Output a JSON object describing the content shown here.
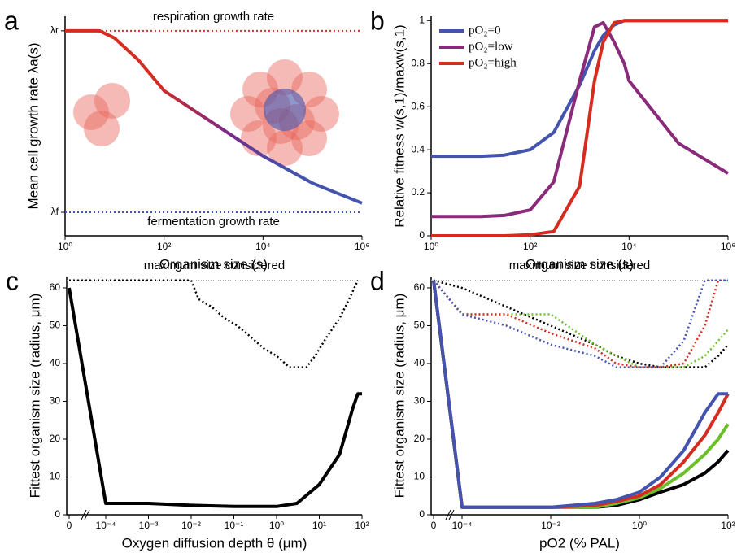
{
  "chart_data": [
    {
      "type": "line",
      "panel_label": "a",
      "xlabel": "Organism size (s)",
      "ylabel": "Mean cell growth rate λa(s)",
      "annotations": [
        "respiration growth rate",
        "fermentation growth rate"
      ],
      "xscale": "log",
      "xlim": [
        1,
        1000000
      ],
      "xticks": [
        {
          "value": 1,
          "label": "10⁰"
        },
        {
          "value": 100,
          "label": "10²"
        },
        {
          "value": 10000,
          "label": "10⁴"
        },
        {
          "value": 1000000,
          "label": "10⁶"
        }
      ],
      "ylim": [
        -0.13,
        1.08
      ],
      "yticks": [
        {
          "value": 0,
          "label": "λf"
        },
        {
          "value": 1,
          "label": "λr"
        }
      ],
      "reference_colors": [
        "#4353ae",
        "#d62b1f"
      ],
      "x": [
        1,
        3,
        5,
        10,
        30,
        100,
        1000,
        10000,
        100000,
        1000000
      ],
      "series": [
        {
          "colors": [
            "#d62b1f",
            "#7a2a8a",
            "#4353ae"
          ],
          "values": [
            1,
            1,
            1,
            0.96,
            0.84,
            0.67,
            0.49,
            0.31,
            0.16,
            0.05
          ]
        }
      ]
    },
    {
      "type": "line",
      "panel_label": "b",
      "xlabel": "Organism size (s)",
      "ylabel": "Relative fitness w(s,1)/maxw(s,1)",
      "xscale": "log",
      "xlim": [
        1,
        1000000
      ],
      "xticks": [
        {
          "value": 1,
          "label": "10⁰"
        },
        {
          "value": 100,
          "label": "10²"
        },
        {
          "value": 10000,
          "label": "10⁴"
        },
        {
          "value": 1000000,
          "label": "10⁶"
        }
      ],
      "ylim": [
        0,
        1.02
      ],
      "yticks": [
        0,
        0.2,
        0.4,
        0.6,
        0.8,
        1
      ],
      "legend": "upper-left",
      "x": [
        1,
        10,
        30,
        100,
        300,
        1000,
        2000,
        3000,
        5000,
        8000,
        10000,
        100000,
        1000000
      ],
      "series": [
        {
          "name": "pO₂=0",
          "color": "#4353ae",
          "values": [
            0.37,
            0.37,
            0.375,
            0.4,
            0.48,
            0.7,
            0.86,
            0.93,
            0.98,
            1,
            1,
            1,
            1
          ]
        },
        {
          "name": "pO₂=low",
          "color": "#8a2a7a",
          "values": [
            0.09,
            0.09,
            0.095,
            0.12,
            0.25,
            0.72,
            0.97,
            0.99,
            0.9,
            0.8,
            0.72,
            0.43,
            0.29
          ]
        },
        {
          "name": "pO₂=high",
          "color": "#d62b1f",
          "values": [
            0,
            0,
            0,
            0.005,
            0.02,
            0.23,
            0.72,
            0.9,
            0.99,
            1,
            1,
            1,
            1
          ]
        }
      ]
    },
    {
      "type": "line",
      "panel_label": "c",
      "xlabel": "Oxygen diffusion depth θ (μm)",
      "ylabel": "Fittest organism size (radius, μm)",
      "annotations": [
        "maximum size considered"
      ],
      "max_size": 62,
      "xscale": "log",
      "xlim": [
        0.0001,
        100
      ],
      "xticks": [
        0,
        {
          "value": 0.0001,
          "label": "10⁻⁴"
        },
        {
          "value": 0.001,
          "label": "10⁻³"
        },
        {
          "value": 0.01,
          "label": "10⁻²"
        },
        {
          "value": 0.1,
          "label": "10⁻¹"
        },
        {
          "value": 1,
          "label": "10⁰"
        },
        {
          "value": 10,
          "label": "10¹"
        },
        {
          "value": 100,
          "label": "10²"
        }
      ],
      "ylim": [
        0,
        63
      ],
      "yticks": [
        0,
        10,
        20,
        30,
        40,
        50,
        60
      ],
      "series": [
        {
          "color": "#000000",
          "x": [
            0,
            0.0001,
            0.001,
            0.01,
            0.1,
            1,
            3,
            10,
            30,
            60,
            80,
            100
          ],
          "values": [
            60,
            3,
            3,
            2.5,
            2.2,
            2.2,
            3,
            8,
            16,
            28,
            32,
            32
          ]
        },
        {
          "color": "#000000",
          "dotted": true,
          "x": [
            0,
            0.01,
            0.015,
            0.03,
            0.06,
            0.12,
            0.25,
            0.5,
            1,
            2,
            5,
            8,
            15,
            30,
            50,
            80
          ],
          "values": [
            62,
            62,
            57,
            55,
            52,
            50,
            47,
            44,
            42,
            39,
            39,
            42,
            47,
            52,
            57,
            62
          ]
        }
      ]
    },
    {
      "type": "line",
      "panel_label": "d",
      "xlabel": "pO2 (% PAL)",
      "ylabel": "Fittest organism size (radius, μm)",
      "annotations": [
        "maximum size considered"
      ],
      "max_size": 62,
      "xscale": "log",
      "xlim": [
        0.0001,
        100
      ],
      "xticks": [
        0,
        {
          "value": 0.0001,
          "label": "10⁻⁴"
        },
        {
          "value": 0.01,
          "label": "10⁻²"
        },
        {
          "value": 1,
          "label": "10⁰"
        },
        {
          "value": 100,
          "label": "10²"
        }
      ],
      "ylim": [
        0,
        63
      ],
      "yticks": [
        0,
        10,
        20,
        30,
        40,
        50,
        60
      ],
      "x": [
        0,
        0.0001,
        0.001,
        0.01,
        0.1,
        0.3,
        1,
        3,
        10,
        30,
        60,
        100
      ],
      "series": [
        {
          "color": "#000000",
          "values": [
            62,
            2,
            2,
            2,
            2,
            2.5,
            4,
            6,
            8,
            11,
            14,
            17
          ]
        },
        {
          "color": "#6bc02a",
          "values": [
            62,
            2,
            2,
            2,
            2,
            3,
            4.5,
            7,
            11,
            16,
            20,
            24
          ]
        },
        {
          "color": "#d62b1f",
          "values": [
            62,
            2,
            2,
            2,
            2.5,
            3.5,
            5,
            8,
            14,
            21,
            27,
            32
          ]
        },
        {
          "color": "#4353ae",
          "values": [
            62,
            2,
            2,
            2,
            3,
            4,
            6,
            10,
            17,
            27,
            32,
            32
          ]
        },
        {
          "color": "#000000",
          "dotted": true,
          "values": [
            62,
            60,
            55,
            50,
            45,
            42,
            40,
            39,
            39,
            39,
            42,
            45
          ]
        },
        {
          "color": "#6bc02a",
          "dotted": true,
          "values": [
            62,
            53,
            53,
            53,
            45,
            42,
            39,
            39,
            39,
            42,
            46,
            49
          ]
        },
        {
          "color": "#d62b1f",
          "dotted": true,
          "values": [
            62,
            53,
            53,
            48,
            44,
            40,
            39,
            39,
            40,
            50,
            62,
            62
          ]
        },
        {
          "color": "#4353ae",
          "dotted": true,
          "values": [
            62,
            53,
            50,
            45,
            42,
            39,
            39,
            39,
            46,
            62,
            62,
            62
          ]
        }
      ]
    }
  ]
}
